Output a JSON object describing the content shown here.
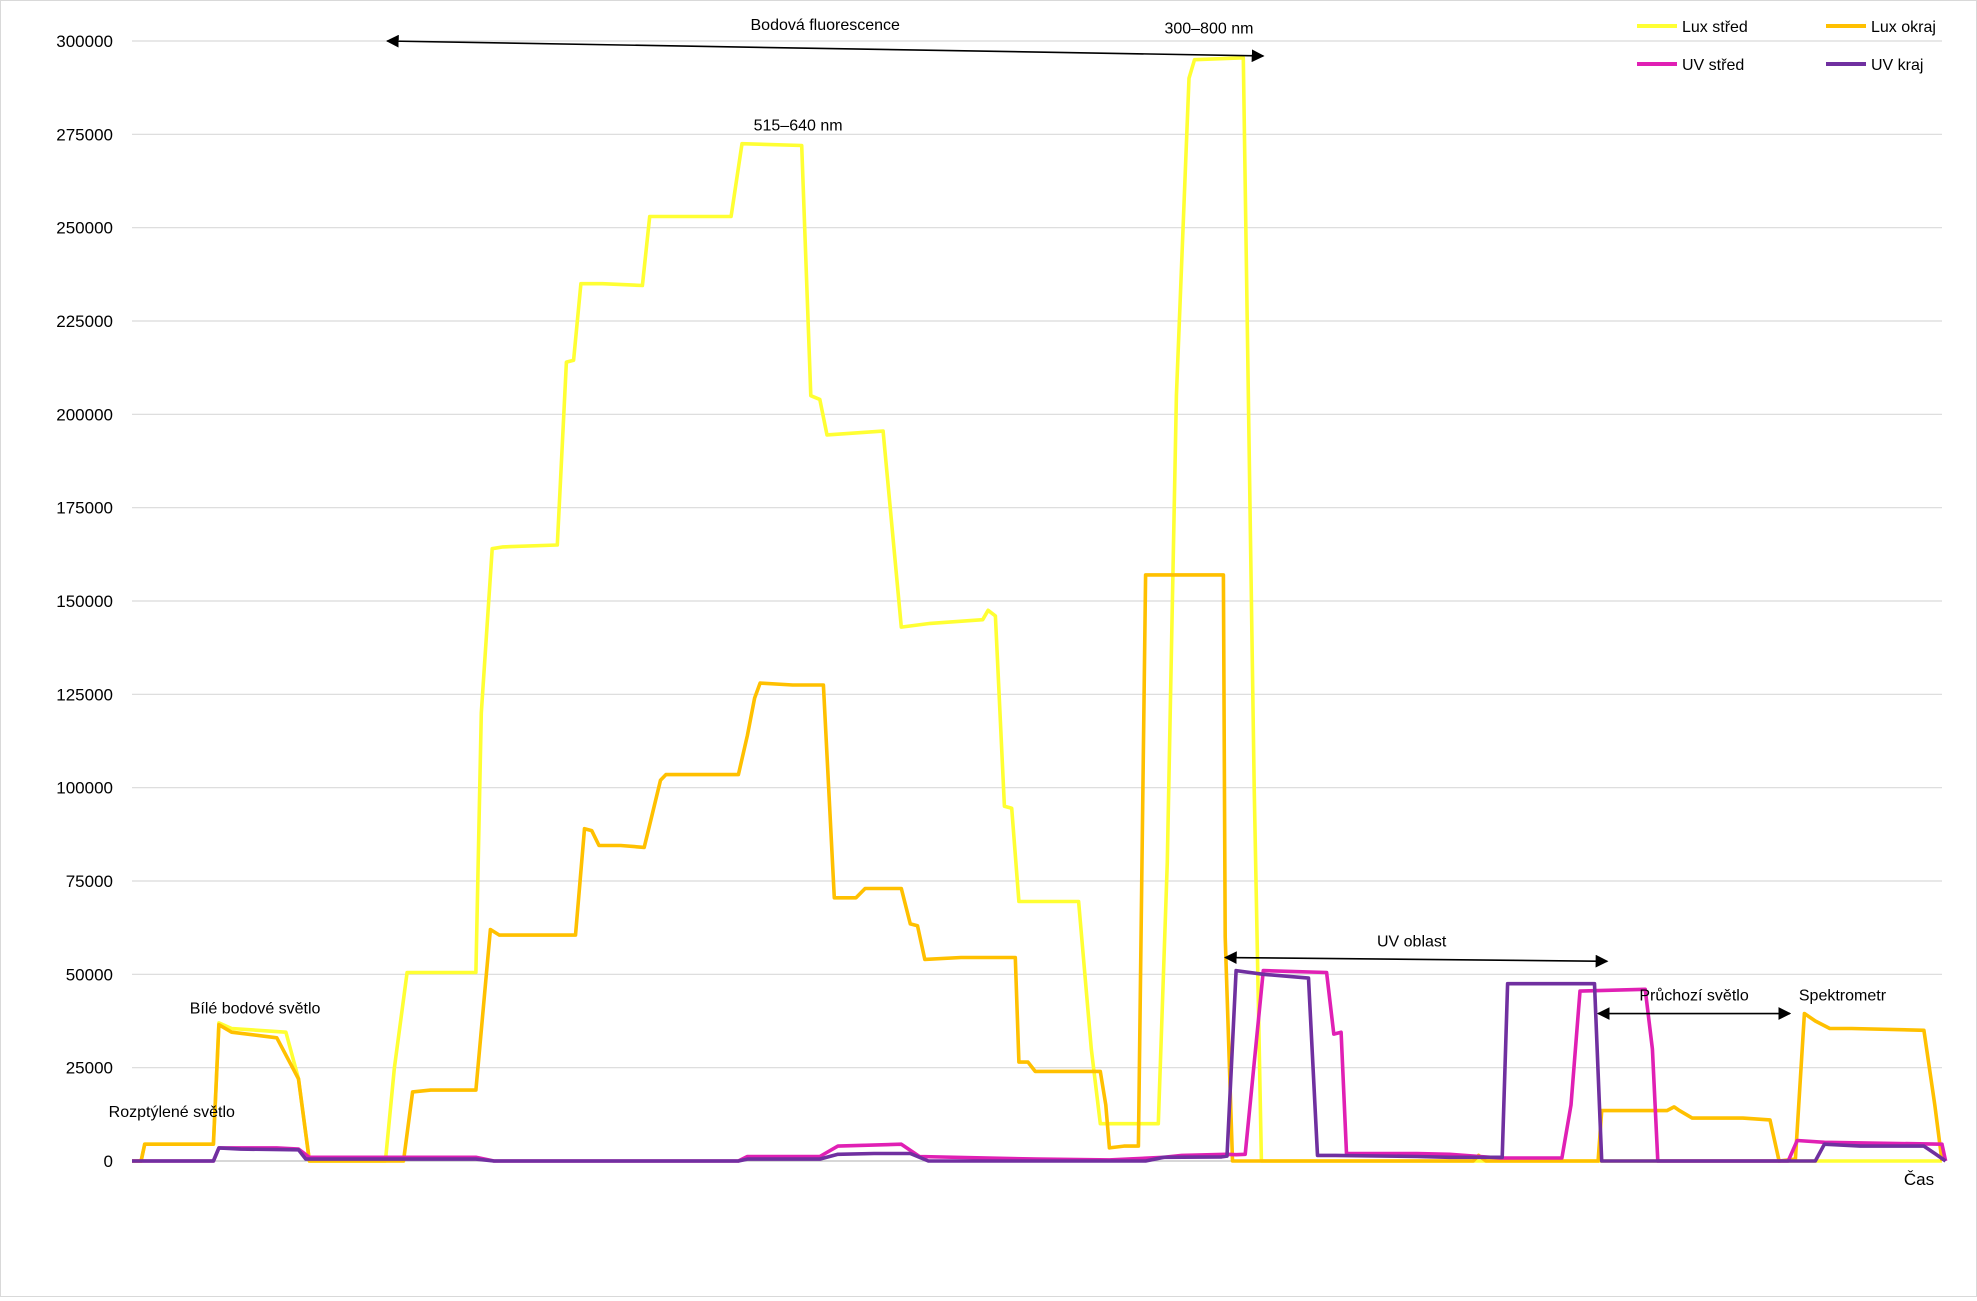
{
  "chart_data": {
    "type": "line",
    "xlabel": "Čas",
    "ylabel": "",
    "ylim": [
      0,
      300000
    ],
    "yticks": [
      0,
      25000,
      50000,
      75000,
      100000,
      125000,
      150000,
      175000,
      200000,
      225000,
      250000,
      275000,
      300000
    ],
    "grid": true,
    "legend_position": "top-right",
    "x_range": [
      0,
      1000
    ],
    "series": [
      {
        "name": "Lux střed",
        "color": "#ffff33",
        "points": [
          [
            0,
            0
          ],
          [
            5,
            0
          ],
          [
            7,
            4500
          ],
          [
            45,
            4500
          ],
          [
            48,
            37000
          ],
          [
            55,
            35500
          ],
          [
            85,
            34500
          ],
          [
            92,
            22000
          ],
          [
            98,
            0
          ],
          [
            140,
            0
          ],
          [
            145,
            25000
          ],
          [
            152,
            50500
          ],
          [
            190,
            50500
          ],
          [
            193,
            120000
          ],
          [
            199,
            164000
          ],
          [
            205,
            164500
          ],
          [
            235,
            165000
          ],
          [
            240,
            214000
          ],
          [
            244,
            214500
          ],
          [
            248,
            235000
          ],
          [
            260,
            235000
          ],
          [
            282,
            234500
          ],
          [
            286,
            253000
          ],
          [
            292,
            253000
          ],
          [
            331,
            253000
          ],
          [
            337,
            272500
          ],
          [
            370,
            272000
          ],
          [
            375,
            205000
          ],
          [
            380,
            204000
          ],
          [
            384,
            194500
          ],
          [
            415,
            195500
          ],
          [
            425,
            143000
          ],
          [
            441,
            144000
          ],
          [
            470,
            145000
          ],
          [
            473,
            147500
          ],
          [
            477,
            146000
          ],
          [
            482,
            95000
          ],
          [
            486,
            94500
          ],
          [
            490,
            69500
          ],
          [
            523,
            69500
          ],
          [
            530,
            30000
          ],
          [
            535,
            10000
          ],
          [
            553,
            10000
          ],
          [
            567,
            10000
          ],
          [
            572,
            80000
          ],
          [
            577,
            205000
          ],
          [
            584,
            290000
          ],
          [
            587,
            295000
          ],
          [
            614,
            295500
          ],
          [
            620,
            100000
          ],
          [
            624,
            0
          ],
          [
            1000,
            0
          ]
        ]
      },
      {
        "name": "Lux okraj",
        "color": "#ffc000",
        "points": [
          [
            0,
            0
          ],
          [
            5,
            0
          ],
          [
            7,
            4500
          ],
          [
            45,
            4500
          ],
          [
            48,
            36500
          ],
          [
            55,
            34500
          ],
          [
            80,
            33000
          ],
          [
            92,
            22000
          ],
          [
            98,
            0
          ],
          [
            150,
            0
          ],
          [
            155,
            18500
          ],
          [
            165,
            19000
          ],
          [
            190,
            19000
          ],
          [
            198,
            62000
          ],
          [
            203,
            60500
          ],
          [
            245,
            60500
          ],
          [
            250,
            89000
          ],
          [
            254,
            88500
          ],
          [
            258,
            84500
          ],
          [
            270,
            84500
          ],
          [
            283,
            84000
          ],
          [
            292,
            102000
          ],
          [
            295,
            103500
          ],
          [
            320,
            103500
          ],
          [
            335,
            103500
          ],
          [
            340,
            114000
          ],
          [
            344,
            124000
          ],
          [
            347,
            128000
          ],
          [
            365,
            127500
          ],
          [
            382,
            127500
          ],
          [
            388,
            70500
          ],
          [
            400,
            70500
          ],
          [
            405,
            73000
          ],
          [
            425,
            73000
          ],
          [
            430,
            63500
          ],
          [
            434,
            63000
          ],
          [
            438,
            54000
          ],
          [
            458,
            54500
          ],
          [
            475,
            54500
          ],
          [
            488,
            54500
          ],
          [
            490,
            26500
          ],
          [
            495,
            26500
          ],
          [
            499,
            24000
          ],
          [
            525,
            24000
          ],
          [
            535,
            24000
          ],
          [
            538,
            15000
          ],
          [
            540,
            3500
          ],
          [
            548,
            4000
          ],
          [
            552,
            4000
          ],
          [
            556,
            4000
          ],
          [
            560,
            157000
          ],
          [
            603,
            157000
          ],
          [
            604,
            60000
          ],
          [
            608,
            0
          ],
          [
            741,
            0
          ],
          [
            744,
            1500
          ],
          [
            748,
            0
          ],
          [
            810,
            0
          ],
          [
            812,
            13500
          ],
          [
            848,
            13500
          ],
          [
            852,
            14500
          ],
          [
            855,
            13500
          ],
          [
            862,
            11500
          ],
          [
            890,
            11500
          ],
          [
            905,
            11000
          ],
          [
            910,
            0
          ],
          [
            919,
            500
          ],
          [
            924,
            39500
          ],
          [
            930,
            37500
          ],
          [
            938,
            35500
          ],
          [
            950,
            35500
          ],
          [
            990,
            35000
          ],
          [
            996,
            15000
          ],
          [
            1000,
            0
          ]
        ]
      },
      {
        "name": "UV střed",
        "color": "#e020b4",
        "points": [
          [
            0,
            0
          ],
          [
            45,
            0
          ],
          [
            48,
            3500
          ],
          [
            80,
            3500
          ],
          [
            92,
            3200
          ],
          [
            98,
            1000
          ],
          [
            130,
            1000
          ],
          [
            190,
            1000
          ],
          [
            200,
            0
          ],
          [
            335,
            0
          ],
          [
            340,
            1200
          ],
          [
            380,
            1200
          ],
          [
            390,
            4000
          ],
          [
            425,
            4500
          ],
          [
            435,
            1200
          ],
          [
            500,
            500
          ],
          [
            540,
            300
          ],
          [
            570,
            1000
          ],
          [
            580,
            1500
          ],
          [
            605,
            1800
          ],
          [
            610,
            1700
          ],
          [
            615,
            1800
          ],
          [
            625,
            51000
          ],
          [
            660,
            50500
          ],
          [
            664,
            34000
          ],
          [
            668,
            34500
          ],
          [
            671,
            2000
          ],
          [
            710,
            2000
          ],
          [
            728,
            1800
          ],
          [
            756,
            800
          ],
          [
            790,
            800
          ],
          [
            795,
            15000
          ],
          [
            800,
            45500
          ],
          [
            836,
            46000
          ],
          [
            840,
            30000
          ],
          [
            843,
            0
          ],
          [
            915,
            0
          ],
          [
            920,
            5500
          ],
          [
            935,
            5000
          ],
          [
            1000,
            4500
          ],
          [
            1002,
            0
          ]
        ]
      },
      {
        "name": "UV kraj",
        "color": "#7030a0",
        "points": [
          [
            0,
            0
          ],
          [
            45,
            0
          ],
          [
            48,
            3500
          ],
          [
            60,
            3200
          ],
          [
            92,
            3000
          ],
          [
            96,
            500
          ],
          [
            130,
            500
          ],
          [
            190,
            500
          ],
          [
            200,
            0
          ],
          [
            335,
            0
          ],
          [
            340,
            500
          ],
          [
            380,
            500
          ],
          [
            390,
            1800
          ],
          [
            410,
            2000
          ],
          [
            430,
            2000
          ],
          [
            440,
            0
          ],
          [
            560,
            0
          ],
          [
            570,
            1000
          ],
          [
            602,
            1100
          ],
          [
            605,
            1300
          ],
          [
            610,
            51000
          ],
          [
            625,
            50000
          ],
          [
            650,
            49000
          ],
          [
            655,
            1500
          ],
          [
            665,
            1500
          ],
          [
            710,
            1200
          ],
          [
            728,
            1000
          ],
          [
            757,
            1000
          ],
          [
            760,
            47500
          ],
          [
            808,
            47500
          ],
          [
            812,
            0
          ],
          [
            930,
            0
          ],
          [
            935,
            4500
          ],
          [
            955,
            4000
          ],
          [
            990,
            4000
          ],
          [
            996,
            2000
          ],
          [
            1002,
            0
          ]
        ]
      }
    ],
    "annotations": [
      {
        "text": "Bodová fluorescence",
        "x": 383,
        "y": 303000
      },
      {
        "text": "300–800 nm",
        "x": 595,
        "y": 302000
      },
      {
        "text": "515–640 nm",
        "x": 368,
        "y": 276000
      },
      {
        "text": "UV oblast",
        "x": 707,
        "y": 57500
      },
      {
        "text": "Průchozí světlo",
        "x": 863,
        "y": 43000
      },
      {
        "text": "Spektrometr",
        "x": 945,
        "y": 43000
      },
      {
        "text": "Bílé bodové světlo",
        "x": 68,
        "y": 39500
      },
      {
        "text": "Rozptýlené světlo",
        "x": 22,
        "y": 11800
      }
    ],
    "arrows": [
      {
        "name": "bodova-fluorescence",
        "from": [
          141,
          300000
        ],
        "to": [
          625,
          296000
        ]
      },
      {
        "name": "uv-oblast",
        "from": [
          604,
          54500
        ],
        "to": [
          815,
          53500
        ]
      },
      {
        "name": "pruchozi-svetlo",
        "from": [
          810,
          39500
        ],
        "to": [
          916,
          39500
        ]
      }
    ]
  }
}
